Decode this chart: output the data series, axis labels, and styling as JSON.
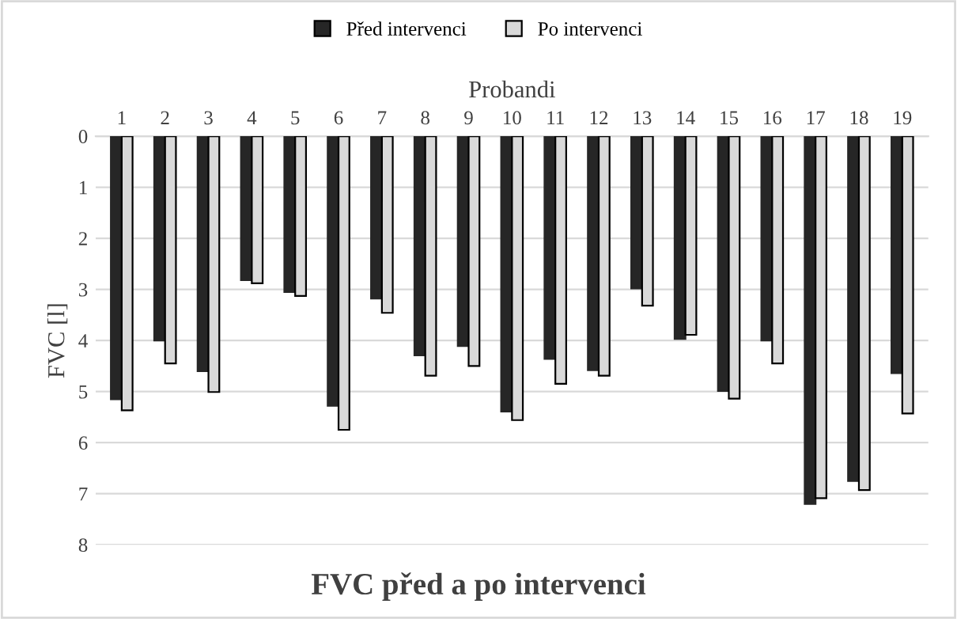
{
  "chart_data": {
    "type": "bar",
    "title": "FVC před a po intervenci",
    "xlabel": "Probandi",
    "ylabel": "FVC [l]",
    "categories": [
      "1",
      "2",
      "3",
      "4",
      "5",
      "6",
      "7",
      "8",
      "9",
      "10",
      "11",
      "12",
      "13",
      "14",
      "15",
      "16",
      "17",
      "18",
      "19"
    ],
    "series": [
      {
        "name": "Před intervenci",
        "color": "#262626",
        "values": [
          5.15,
          4.0,
          4.6,
          2.82,
          3.05,
          5.28,
          3.18,
          4.29,
          4.11,
          5.39,
          4.36,
          4.58,
          2.98,
          3.97,
          4.99,
          4.0,
          7.2,
          6.75,
          4.64
        ]
      },
      {
        "name": "Po intervenci",
        "color": "#d9d9d9",
        "values": [
          5.37,
          4.45,
          5.01,
          2.88,
          3.13,
          5.75,
          3.46,
          4.69,
          4.5,
          5.56,
          4.85,
          4.69,
          3.32,
          3.89,
          5.14,
          4.45,
          7.09,
          6.93,
          5.43
        ]
      }
    ],
    "ylim": [
      8,
      0
    ],
    "yticks": [
      0,
      1,
      2,
      3,
      4,
      5,
      6,
      7,
      8
    ],
    "grid": "y",
    "legend": "top"
  }
}
